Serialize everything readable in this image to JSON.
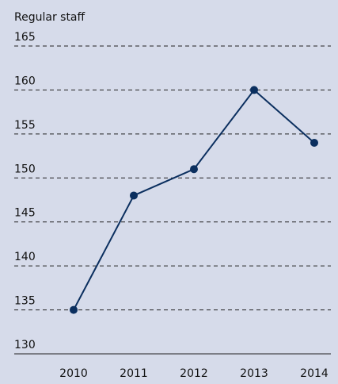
{
  "chart_data": {
    "type": "line",
    "title": "Regular staff",
    "categories": [
      "2010",
      "2011",
      "2012",
      "2013",
      "2014"
    ],
    "series": [
      {
        "name": "Regular staff",
        "color": "#0b2f5f",
        "values": [
          135,
          148,
          151,
          160,
          154
        ]
      }
    ],
    "ylim": [
      130,
      165
    ],
    "yticks": [
      130,
      135,
      140,
      145,
      150,
      155,
      160,
      165
    ],
    "grid": true
  }
}
